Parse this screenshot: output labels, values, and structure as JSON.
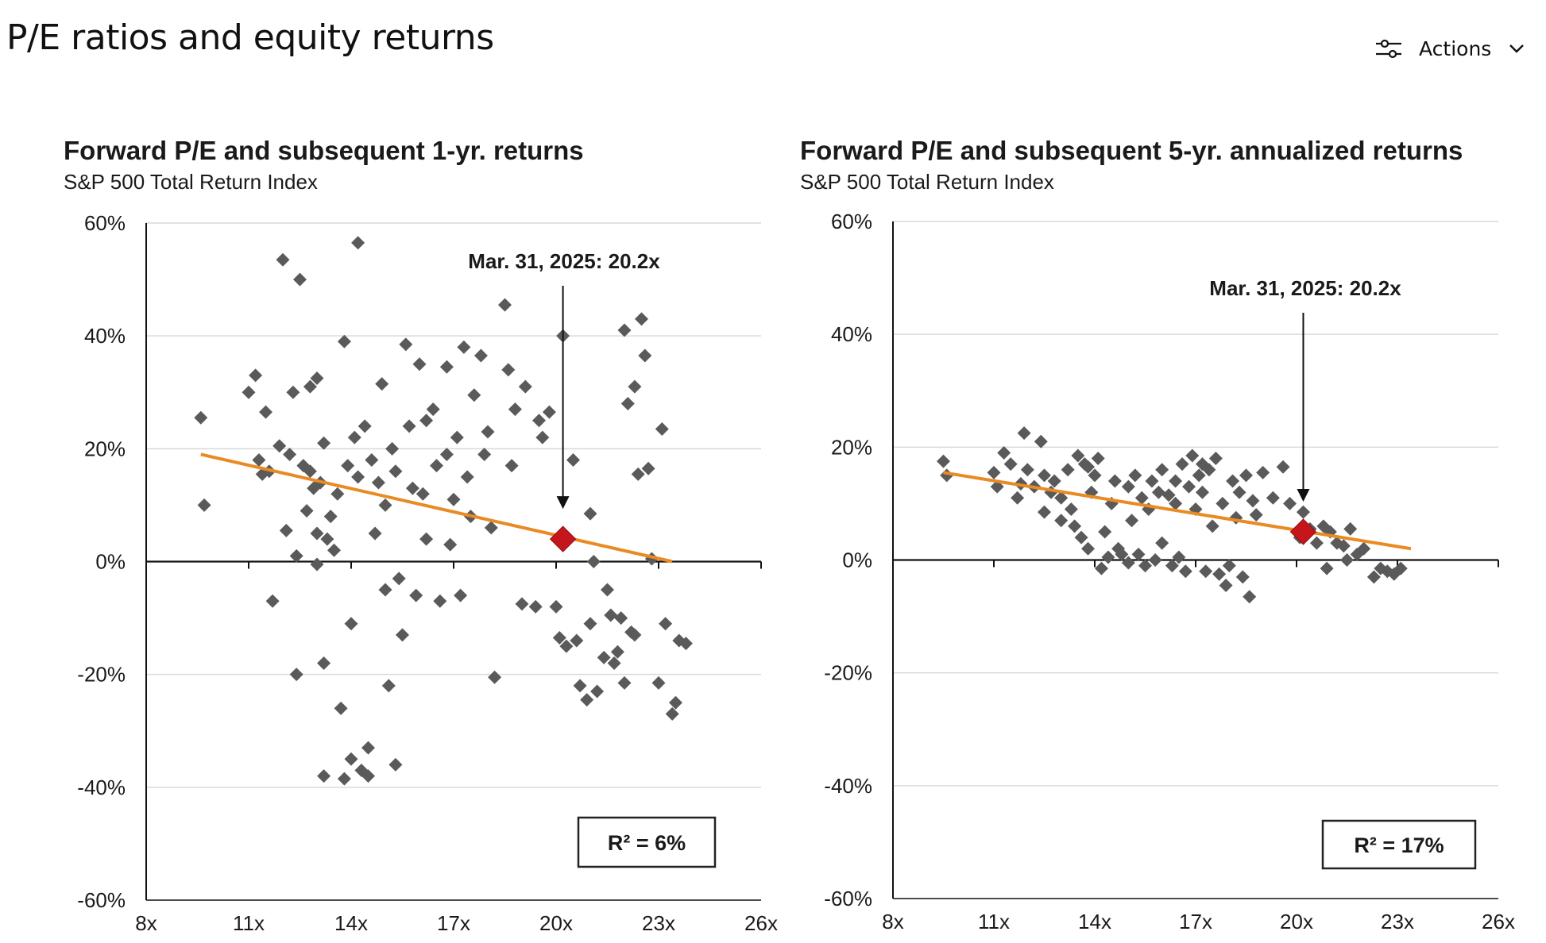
{
  "page": {
    "title": "P/E ratios and equity returns"
  },
  "actions": {
    "label": "Actions",
    "icon": "sliders-icon",
    "chevron_icon": "chevron-down-icon"
  },
  "colors": {
    "points": "#5a5a5a",
    "trendline": "#e98a23",
    "current_marker": "#c5161c",
    "axis": "#111111",
    "gridline": "#d9d9d9"
  },
  "chart_data": [
    {
      "type": "scatter",
      "title": "Forward P/E and subsequent 1-yr. returns",
      "subtitle": "S&P 500 Total Return Index",
      "xlabel": "",
      "ylabel": "",
      "xlim": [
        8,
        26
      ],
      "ylim": [
        -60,
        60
      ],
      "x_ticks": [
        "8x",
        "11x",
        "14x",
        "17x",
        "20x",
        "23x",
        "26x"
      ],
      "x_tick_values": [
        8,
        11,
        14,
        17,
        20,
        23,
        26
      ],
      "y_ticks": [
        "60%",
        "40%",
        "20%",
        "0%",
        "-20%",
        "-40%",
        "-60%"
      ],
      "y_tick_values": [
        60,
        40,
        20,
        0,
        -20,
        -40,
        -60
      ],
      "grid": true,
      "annotation": {
        "text": "Mar. 31, 2025:  20.2x",
        "x": 20.2,
        "y": 4
      },
      "r2_label": "R² = 6%",
      "trendline": {
        "x": [
          9.6,
          23.4
        ],
        "y": [
          19,
          0
        ]
      },
      "points": [
        [
          9.6,
          25.5
        ],
        [
          9.7,
          10
        ],
        [
          11,
          30
        ],
        [
          11.2,
          33
        ],
        [
          11.3,
          18
        ],
        [
          11.4,
          15.5
        ],
        [
          11.5,
          26.5
        ],
        [
          11.6,
          16
        ],
        [
          11.7,
          -7
        ],
        [
          11.9,
          20.5
        ],
        [
          12,
          53.5
        ],
        [
          12.1,
          5.5
        ],
        [
          12.2,
          19
        ],
        [
          12.3,
          30
        ],
        [
          12.4,
          1
        ],
        [
          12.4,
          -20
        ],
        [
          12.5,
          50
        ],
        [
          12.6,
          17
        ],
        [
          12.7,
          9
        ],
        [
          12.8,
          31
        ],
        [
          12.8,
          16
        ],
        [
          12.9,
          13
        ],
        [
          13,
          5
        ],
        [
          13,
          -0.5
        ],
        [
          13,
          32.5
        ],
        [
          13.1,
          14
        ],
        [
          13.2,
          21
        ],
        [
          13.2,
          -18
        ],
        [
          13.2,
          -38
        ],
        [
          13.3,
          4
        ],
        [
          13.4,
          8
        ],
        [
          13.5,
          2
        ],
        [
          13.6,
          12
        ],
        [
          13.7,
          -26
        ],
        [
          13.8,
          39
        ],
        [
          13.8,
          -38.5
        ],
        [
          13.9,
          17
        ],
        [
          14,
          -11
        ],
        [
          14,
          -35
        ],
        [
          14.1,
          22
        ],
        [
          14.2,
          56.5
        ],
        [
          14.2,
          15
        ],
        [
          14.3,
          -37
        ],
        [
          14.4,
          24
        ],
        [
          14.5,
          -33
        ],
        [
          14.5,
          -38
        ],
        [
          14.6,
          18
        ],
        [
          14.7,
          5
        ],
        [
          14.8,
          14
        ],
        [
          14.9,
          31.5
        ],
        [
          15,
          10
        ],
        [
          15,
          -5
        ],
        [
          15.1,
          -22
        ],
        [
          15.2,
          20
        ],
        [
          15.3,
          -36
        ],
        [
          15.3,
          16
        ],
        [
          15.4,
          -3
        ],
        [
          15.5,
          -13
        ],
        [
          15.6,
          38.5
        ],
        [
          15.7,
          24
        ],
        [
          15.8,
          13
        ],
        [
          15.9,
          -6
        ],
        [
          16,
          35
        ],
        [
          16.1,
          12
        ],
        [
          16.2,
          25
        ],
        [
          16.2,
          4
        ],
        [
          16.4,
          27
        ],
        [
          16.5,
          17
        ],
        [
          16.6,
          -7
        ],
        [
          16.8,
          34.5
        ],
        [
          16.8,
          19
        ],
        [
          16.9,
          3
        ],
        [
          17,
          11
        ],
        [
          17.1,
          22
        ],
        [
          17.2,
          -6
        ],
        [
          17.3,
          38
        ],
        [
          17.4,
          15
        ],
        [
          17.5,
          8
        ],
        [
          17.6,
          29.5
        ],
        [
          17.8,
          36.5
        ],
        [
          17.9,
          19
        ],
        [
          18,
          23
        ],
        [
          18.1,
          6
        ],
        [
          18.2,
          -20.5
        ],
        [
          18.5,
          45.5
        ],
        [
          18.6,
          34
        ],
        [
          18.7,
          17
        ],
        [
          18.8,
          27
        ],
        [
          19,
          -7.5
        ],
        [
          19.1,
          31
        ],
        [
          19.4,
          -8
        ],
        [
          19.5,
          25
        ],
        [
          19.6,
          22
        ],
        [
          19.8,
          26.5
        ],
        [
          20,
          -8
        ],
        [
          20.1,
          -13.5
        ],
        [
          20.2,
          40
        ],
        [
          20.3,
          -15
        ],
        [
          20.5,
          18
        ],
        [
          20.7,
          -22
        ],
        [
          20.9,
          -24.5
        ],
        [
          21,
          -11
        ],
        [
          21,
          8.5
        ],
        [
          21.2,
          -23
        ],
        [
          21.4,
          -17
        ],
        [
          21.6,
          -9.5
        ],
        [
          21.8,
          -16
        ],
        [
          22,
          -21.5
        ],
        [
          22,
          41
        ],
        [
          22.1,
          28
        ],
        [
          22.2,
          -12.5
        ],
        [
          22.3,
          31
        ],
        [
          22.4,
          15.5
        ],
        [
          22.5,
          43
        ],
        [
          22.6,
          36.5
        ],
        [
          22.7,
          16.5
        ],
        [
          22.8,
          0.5
        ],
        [
          23,
          -21.5
        ],
        [
          23.1,
          23.5
        ],
        [
          23.2,
          -11
        ],
        [
          23.4,
          -27
        ],
        [
          23.6,
          -14
        ],
        [
          23.8,
          -14.5
        ],
        [
          23.5,
          -25
        ],
        [
          21.5,
          -5
        ],
        [
          21.1,
          0
        ],
        [
          20.6,
          -14
        ],
        [
          22.3,
          -13
        ],
        [
          21.7,
          -18
        ],
        [
          21.9,
          -10
        ]
      ]
    },
    {
      "type": "scatter",
      "title": "Forward P/E and subsequent 5-yr. annualized returns",
      "subtitle": "S&P 500 Total Return Index",
      "xlabel": "",
      "ylabel": "",
      "xlim": [
        8,
        26
      ],
      "ylim": [
        -60,
        60
      ],
      "x_ticks": [
        "8x",
        "11x",
        "14x",
        "17x",
        "20x",
        "23x",
        "26x"
      ],
      "x_tick_values": [
        8,
        11,
        14,
        17,
        20,
        23,
        26
      ],
      "y_ticks": [
        "60%",
        "40%",
        "20%",
        "0%",
        "-20%",
        "-40%",
        "-60%"
      ],
      "y_tick_values": [
        60,
        40,
        20,
        0,
        -20,
        -40,
        -60
      ],
      "grid": true,
      "annotation": {
        "text": "Mar. 31, 2025:  20.2x",
        "x": 20.2,
        "y": 5
      },
      "r2_label": "R² = 17%",
      "trendline": {
        "x": [
          9.5,
          23.4
        ],
        "y": [
          15.5,
          2
        ]
      },
      "points": [
        [
          9.5,
          17.5
        ],
        [
          9.6,
          15
        ],
        [
          11,
          15.5
        ],
        [
          11.1,
          13
        ],
        [
          11.3,
          19
        ],
        [
          11.5,
          17
        ],
        [
          11.7,
          11
        ],
        [
          11.8,
          13.5
        ],
        [
          11.9,
          22.5
        ],
        [
          12,
          16
        ],
        [
          12.2,
          13
        ],
        [
          12.4,
          21
        ],
        [
          12.5,
          8.5
        ],
        [
          12.5,
          15
        ],
        [
          12.7,
          12
        ],
        [
          12.8,
          14
        ],
        [
          13,
          7
        ],
        [
          13,
          11
        ],
        [
          13.2,
          16
        ],
        [
          13.3,
          9
        ],
        [
          13.4,
          6
        ],
        [
          13.5,
          18.5
        ],
        [
          13.6,
          4
        ],
        [
          13.7,
          17
        ],
        [
          13.8,
          2
        ],
        [
          13.9,
          12
        ],
        [
          14,
          15
        ],
        [
          14.1,
          18
        ],
        [
          14.2,
          -1.5
        ],
        [
          14.3,
          5
        ],
        [
          14.4,
          0.5
        ],
        [
          14.5,
          10
        ],
        [
          14.6,
          14
        ],
        [
          14.7,
          2
        ],
        [
          14.8,
          1
        ],
        [
          15,
          13
        ],
        [
          15,
          -0.5
        ],
        [
          15.1,
          7
        ],
        [
          15.2,
          15
        ],
        [
          15.3,
          1
        ],
        [
          15.4,
          11
        ],
        [
          15.5,
          -1
        ],
        [
          15.6,
          9
        ],
        [
          15.7,
          14
        ],
        [
          15.8,
          0
        ],
        [
          15.9,
          12
        ],
        [
          16,
          16
        ],
        [
          16,
          3
        ],
        [
          16.2,
          11.5
        ],
        [
          16.3,
          -1
        ],
        [
          16.4,
          14
        ],
        [
          16.5,
          0.5
        ],
        [
          16.6,
          17
        ],
        [
          16.7,
          -2
        ],
        [
          16.8,
          13
        ],
        [
          16.9,
          18.5
        ],
        [
          17,
          9
        ],
        [
          17.1,
          15
        ],
        [
          17.2,
          12
        ],
        [
          17.3,
          -2
        ],
        [
          17.4,
          16
        ],
        [
          17.5,
          6
        ],
        [
          17.6,
          18
        ],
        [
          17.7,
          -2.5
        ],
        [
          17.8,
          10
        ],
        [
          17.9,
          -4.5
        ],
        [
          18,
          -1
        ],
        [
          18.1,
          14
        ],
        [
          18.2,
          7.5
        ],
        [
          18.3,
          12
        ],
        [
          18.4,
          -3
        ],
        [
          18.5,
          15
        ],
        [
          18.6,
          -6.5
        ],
        [
          18.7,
          10.5
        ],
        [
          18.8,
          8
        ],
        [
          19,
          15.5
        ],
        [
          19.3,
          11
        ],
        [
          19.6,
          16.5
        ],
        [
          19.8,
          10
        ],
        [
          20.1,
          4
        ],
        [
          20.2,
          8.5
        ],
        [
          20.4,
          5.5
        ],
        [
          20.6,
          3
        ],
        [
          20.8,
          6
        ],
        [
          20.9,
          -1.5
        ],
        [
          21,
          5
        ],
        [
          21.2,
          3
        ],
        [
          21.4,
          2.5
        ],
        [
          21.5,
          0
        ],
        [
          21.6,
          5.5
        ],
        [
          21.8,
          1
        ],
        [
          22,
          2
        ],
        [
          22.3,
          -3
        ],
        [
          22.5,
          -1.5
        ],
        [
          22.7,
          -2
        ],
        [
          22.9,
          -2.5
        ],
        [
          23.1,
          -1.5
        ],
        [
          13.8,
          16.5
        ],
        [
          16.4,
          10
        ],
        [
          17.2,
          17
        ]
      ]
    }
  ]
}
